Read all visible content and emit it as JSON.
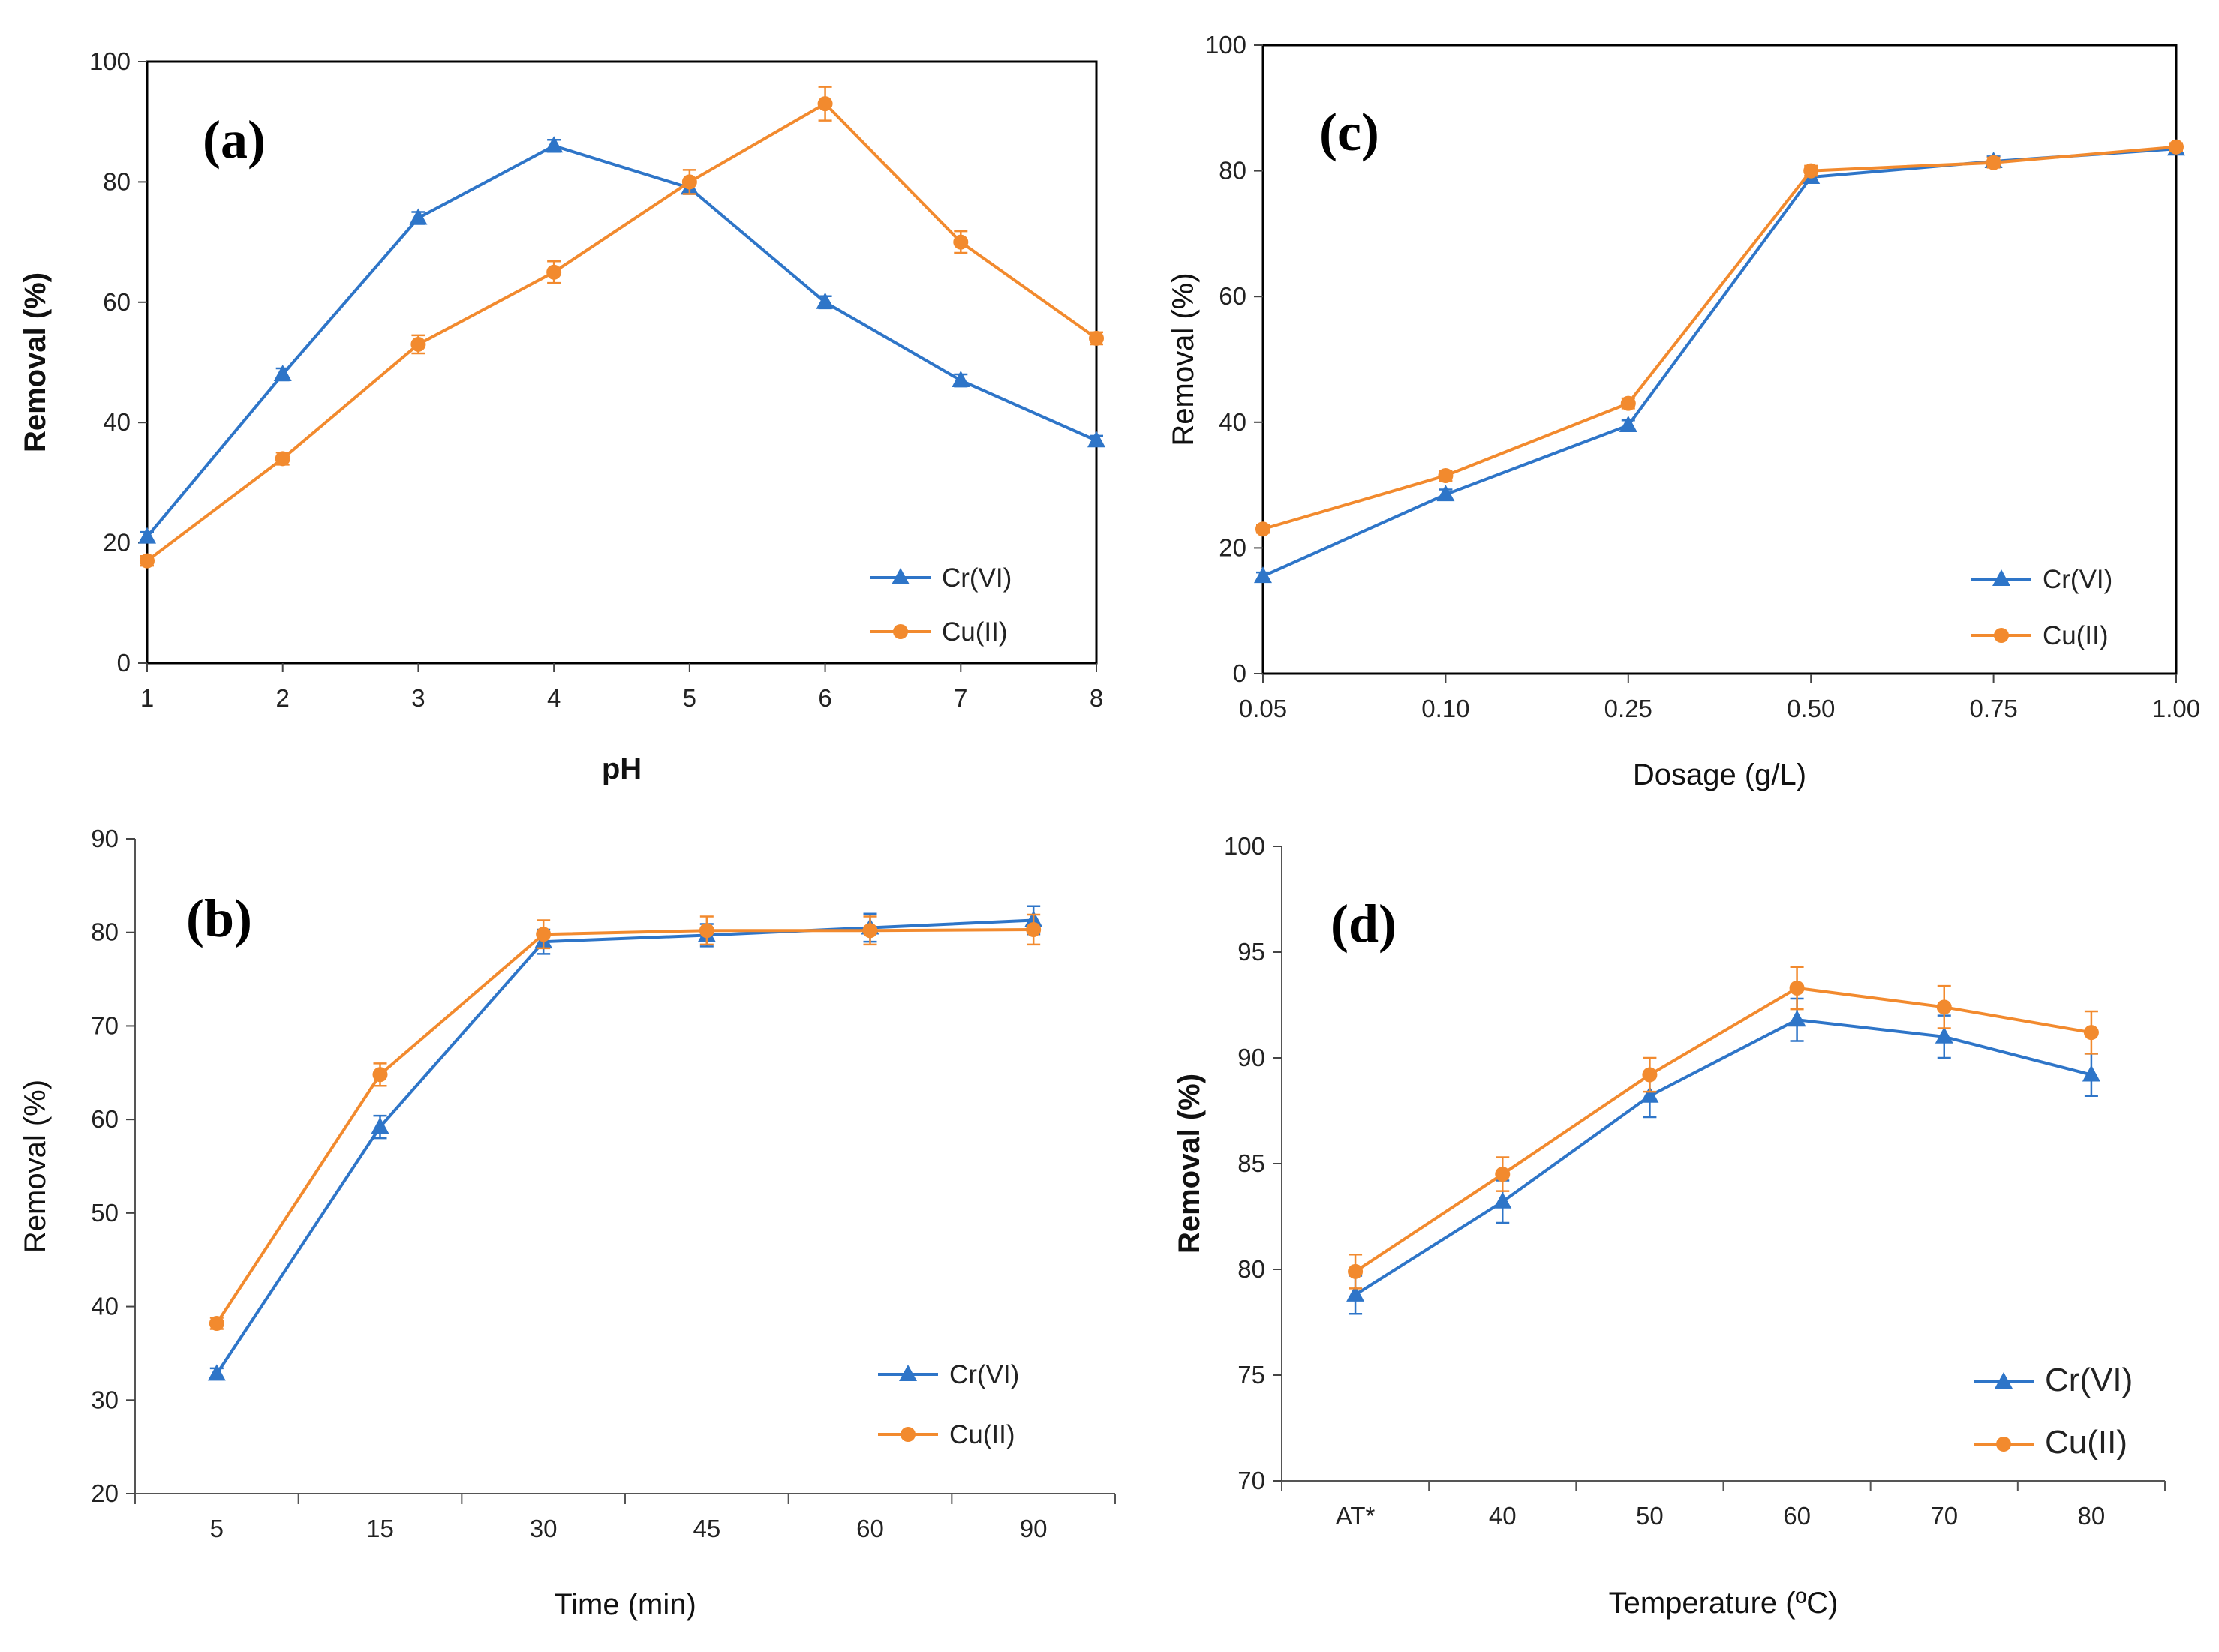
{
  "colors": {
    "cr": "#2E75C8",
    "cu": "#F28A2E",
    "axis": "#222222"
  },
  "chart_data": [
    {
      "id": "a",
      "type": "line",
      "panel_label": "(a)",
      "xlabel": "pH",
      "ylabel": "Removal (%)",
      "categories": [
        "1",
        "2",
        "3",
        "4",
        "5",
        "6",
        "7",
        "8"
      ],
      "ylim": [
        0,
        100
      ],
      "yticks": [
        "0",
        "20",
        "40",
        "60",
        "80",
        "100"
      ],
      "legend_position": "bottom-right",
      "series": [
        {
          "name": "Cr(VI)",
          "marker": "triangle",
          "values": [
            21,
            48,
            74,
            86,
            79,
            60,
            47,
            37
          ],
          "errors": [
            0.8,
            1,
            1,
            1,
            1,
            1,
            1,
            0.8
          ]
        },
        {
          "name": "Cu(II)",
          "marker": "circle",
          "values": [
            17,
            34,
            53,
            65,
            80,
            93,
            70,
            54
          ],
          "errors": [
            0.8,
            1,
            1.5,
            1.8,
            2,
            2.8,
            1.8,
            1
          ]
        }
      ]
    },
    {
      "id": "b",
      "type": "line",
      "panel_label": "(b)",
      "xlabel": "Time (min)",
      "ylabel": "Removal (%)",
      "categories": [
        "5",
        "15",
        "30",
        "45",
        "60",
        "90"
      ],
      "ylim": [
        20,
        90
      ],
      "yticks": [
        "20",
        "30",
        "40",
        "50",
        "60",
        "70",
        "80",
        "90"
      ],
      "legend_position": "bottom-right",
      "series": [
        {
          "name": "Cr(VI)",
          "marker": "triangle",
          "values": [
            32.8,
            59.2,
            79,
            79.7,
            80.5,
            81.3
          ],
          "errors": [
            0.6,
            1.2,
            1.3,
            1.2,
            1.5,
            1.5
          ]
        },
        {
          "name": "Cu(II)",
          "marker": "circle",
          "values": [
            38.2,
            64.8,
            79.8,
            80.2,
            80.2,
            80.3
          ],
          "errors": [
            0.6,
            1.2,
            1.5,
            1.5,
            1.5,
            1.6
          ]
        }
      ]
    },
    {
      "id": "c",
      "type": "line",
      "panel_label": "(c)",
      "xlabel": "Dosage (g/L)",
      "ylabel": "Removal (%)",
      "categories": [
        "0.05",
        "0.10",
        "0.25",
        "0.50",
        "0.75",
        "1.00"
      ],
      "ylim": [
        0,
        100
      ],
      "yticks": [
        "0",
        "20",
        "40",
        "60",
        "80",
        "100"
      ],
      "legend_position": "bottom-right",
      "series": [
        {
          "name": "Cr(VI)",
          "marker": "triangle",
          "values": [
            15.5,
            28.5,
            39.5,
            79,
            81.5,
            83.5
          ],
          "errors": [
            0.6,
            0.8,
            0.8,
            0.8,
            0.8,
            0.6
          ]
        },
        {
          "name": "Cu(II)",
          "marker": "circle",
          "values": [
            23,
            31.5,
            43,
            80,
            81.3,
            83.8
          ],
          "errors": [
            0.6,
            0.8,
            0.8,
            0.8,
            0.8,
            0.6
          ]
        }
      ]
    },
    {
      "id": "d",
      "type": "line",
      "panel_label": "(d)",
      "xlabel": "Temperature (ºC)",
      "ylabel": "Removal (%)",
      "categories": [
        "AT*",
        "40",
        "50",
        "60",
        "70",
        "80"
      ],
      "ylim": [
        70,
        100
      ],
      "yticks": [
        "70",
        "75",
        "80",
        "85",
        "90",
        "95",
        "100"
      ],
      "legend_position": "bottom-right",
      "series": [
        {
          "name": "Cr(VI)",
          "marker": "triangle",
          "values": [
            78.8,
            83.2,
            88.2,
            91.8,
            91,
            89.2
          ],
          "errors": [
            0.9,
            1,
            1,
            1,
            1,
            1
          ]
        },
        {
          "name": "Cu(II)",
          "marker": "circle",
          "values": [
            79.9,
            84.5,
            89.2,
            93.3,
            92.4,
            91.2
          ],
          "errors": [
            0.8,
            0.8,
            0.8,
            1,
            1,
            1
          ]
        }
      ]
    }
  ]
}
